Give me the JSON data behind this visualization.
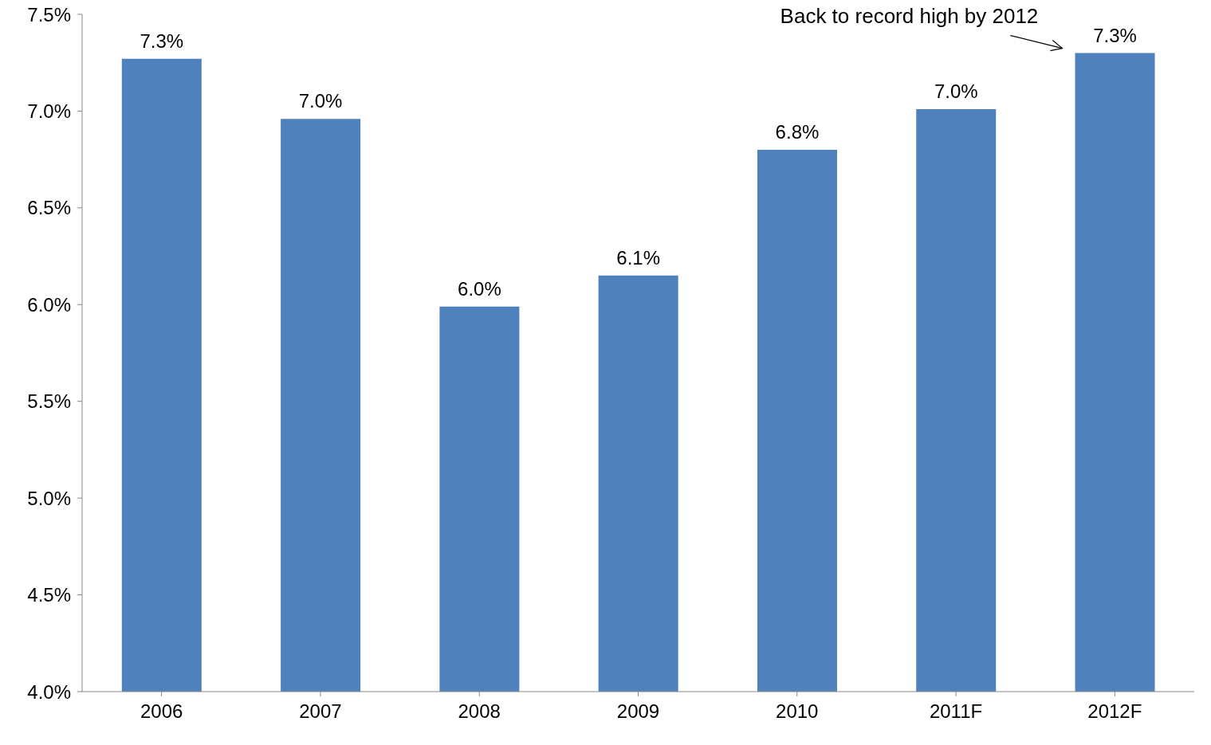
{
  "chart_data": {
    "type": "bar",
    "categories": [
      "2006",
      "2007",
      "2008",
      "2009",
      "2010",
      "2011F",
      "2012F"
    ],
    "values": [
      7.27,
      6.96,
      5.99,
      6.15,
      6.8,
      7.01,
      7.3
    ],
    "value_labels": [
      "7.3%",
      "7.0%",
      "6.0%",
      "6.1%",
      "6.8%",
      "7.0%",
      "7.3%"
    ],
    "color": "#4f81bd",
    "ylim": [
      4.0,
      7.5
    ],
    "yticks": [
      {
        "value": 4.0,
        "label": "4.0%"
      },
      {
        "value": 4.5,
        "label": "4.5%"
      },
      {
        "value": 5.0,
        "label": "5.0%"
      },
      {
        "value": 5.5,
        "label": "5.5%"
      },
      {
        "value": 6.0,
        "label": "6.0%"
      },
      {
        "value": 6.5,
        "label": "6.5%"
      },
      {
        "value": 7.0,
        "label": "7.0%"
      },
      {
        "value": 7.5,
        "label": "7.5%"
      }
    ],
    "grid": false,
    "legend": false,
    "annotations": [
      "Back to record high by 2012"
    ]
  }
}
